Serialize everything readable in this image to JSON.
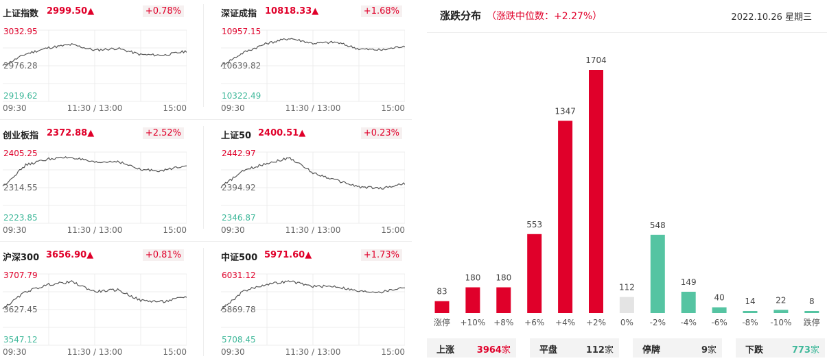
{
  "panels": [
    {
      "name": "上证指数",
      "price": "2999.50▲",
      "pct": "+0.78%",
      "max": "3032.95",
      "mid": "2976.28",
      "min": "2919.62"
    },
    {
      "name": "深证成指",
      "price": "10818.33▲",
      "pct": "+1.68%",
      "max": "10957.15",
      "mid": "10639.82",
      "min": "10322.49"
    },
    {
      "name": "创业板指",
      "price": "2372.88▲",
      "pct": "+2.52%",
      "max": "2405.25",
      "mid": "2314.55",
      "min": "2223.85"
    },
    {
      "name": "上证50",
      "price": "2400.51▲",
      "pct": "+0.23%",
      "max": "2442.97",
      "mid": "2394.92",
      "min": "2346.87"
    },
    {
      "name": "沪深300",
      "price": "3656.90▲",
      "pct": "+0.81%",
      "max": "3707.79",
      "mid": "3627.45",
      "min": "3547.12"
    },
    {
      "name": "中证500",
      "price": "5971.60▲",
      "pct": "+1.73%",
      "max": "6031.12",
      "mid": "5869.78",
      "min": "5708.45"
    }
  ],
  "time_labels": [
    "09:30",
    "11:30 / 13:00",
    "15:00"
  ],
  "distribution": {
    "title": "涨跌分布",
    "subtitle": "（涨跌中位数：+2.27%）",
    "date": "2022.10.26 星期三"
  },
  "summary": [
    {
      "label": "上涨",
      "value": "3964",
      "unit": "家",
      "color": "#e0002a"
    },
    {
      "label": "平盘",
      "value": "112",
      "unit": "家",
      "color": "#333333"
    },
    {
      "label": "停牌",
      "value": "9",
      "unit": "家",
      "color": "#333333"
    },
    {
      "label": "下跌",
      "value": "773",
      "unit": "家",
      "color": "#3fb89a"
    }
  ],
  "colors": {
    "up": "#e0002a",
    "down": "#55c4a2",
    "flat": "#e4e4e4"
  },
  "chart_data": [
    {
      "type": "line",
      "title": "上证指数",
      "x": [
        "09:30",
        "10:00",
        "10:30",
        "11:00",
        "11:30 / 13:00",
        "13:30",
        "14:00",
        "14:30",
        "15:00"
      ],
      "series": [
        {
          "values": [
            2976.0,
            2995.0,
            3005.0,
            3010.0,
            3001.0,
            3004.0,
            2994.0,
            2993.0,
            2999.5
          ]
        }
      ],
      "ylim": [
        2919.62,
        3032.95
      ]
    },
    {
      "type": "line",
      "title": "深证成指",
      "x": [
        "09:30",
        "10:00",
        "10:30",
        "11:00",
        "11:30 / 13:00",
        "13:30",
        "14:00",
        "14:30",
        "15:00"
      ],
      "series": [
        {
          "values": [
            10640,
            10760,
            10840,
            10885,
            10840,
            10850,
            10790,
            10780,
            10818.33
          ]
        }
      ],
      "ylim": [
        10322.49,
        10957.15
      ]
    },
    {
      "type": "line",
      "title": "创业板指",
      "x": [
        "09:30",
        "10:00",
        "10:30",
        "11:00",
        "11:30 / 13:00",
        "13:30",
        "14:00",
        "14:30",
        "15:00"
      ],
      "series": [
        {
          "values": [
            2318,
            2372,
            2388,
            2392,
            2378,
            2382,
            2360,
            2358,
            2372.88
          ]
        }
      ],
      "ylim": [
        2223.85,
        2405.25
      ]
    },
    {
      "type": "line",
      "title": "上证50",
      "x": [
        "09:30",
        "10:00",
        "10:30",
        "11:00",
        "11:30 / 13:00",
        "13:30",
        "14:00",
        "14:30",
        "15:00"
      ],
      "series": [
        {
          "values": [
            2396,
            2418,
            2428,
            2435,
            2415,
            2405,
            2396,
            2394,
            2400.51
          ]
        }
      ],
      "ylim": [
        2346.87,
        2442.97
      ]
    },
    {
      "type": "line",
      "title": "沪深300",
      "x": [
        "09:30",
        "10:00",
        "10:30",
        "11:00",
        "11:30 / 13:00",
        "13:30",
        "14:00",
        "14:30",
        "15:00"
      ],
      "series": [
        {
          "values": [
            3629,
            3668,
            3684,
            3690,
            3668,
            3672,
            3648,
            3645,
            3656.9
          ]
        }
      ],
      "ylim": [
        3547.12,
        3707.79
      ]
    },
    {
      "type": "line",
      "title": "中证500",
      "x": [
        "09:30",
        "10:00",
        "10:30",
        "11:00",
        "11:30 / 13:00",
        "13:30",
        "14:00",
        "14:30",
        "15:00"
      ],
      "series": [
        {
          "values": [
            5870,
            5955,
            5985,
            5998,
            5975,
            5975,
            5952,
            5950,
            5971.6
          ]
        }
      ],
      "ylim": [
        5708.45,
        6031.12
      ]
    },
    {
      "type": "bar",
      "title": "涨跌分布",
      "categories": [
        "涨停",
        "+10%",
        "+8%",
        "+6%",
        "+4%",
        "+2%",
        "0%",
        "-2%",
        "-4%",
        "-6%",
        "-8%",
        "-10%",
        "跌停"
      ],
      "values": [
        83,
        180,
        180,
        553,
        1347,
        1704,
        112,
        548,
        149,
        40,
        14,
        22,
        8
      ]
    }
  ]
}
